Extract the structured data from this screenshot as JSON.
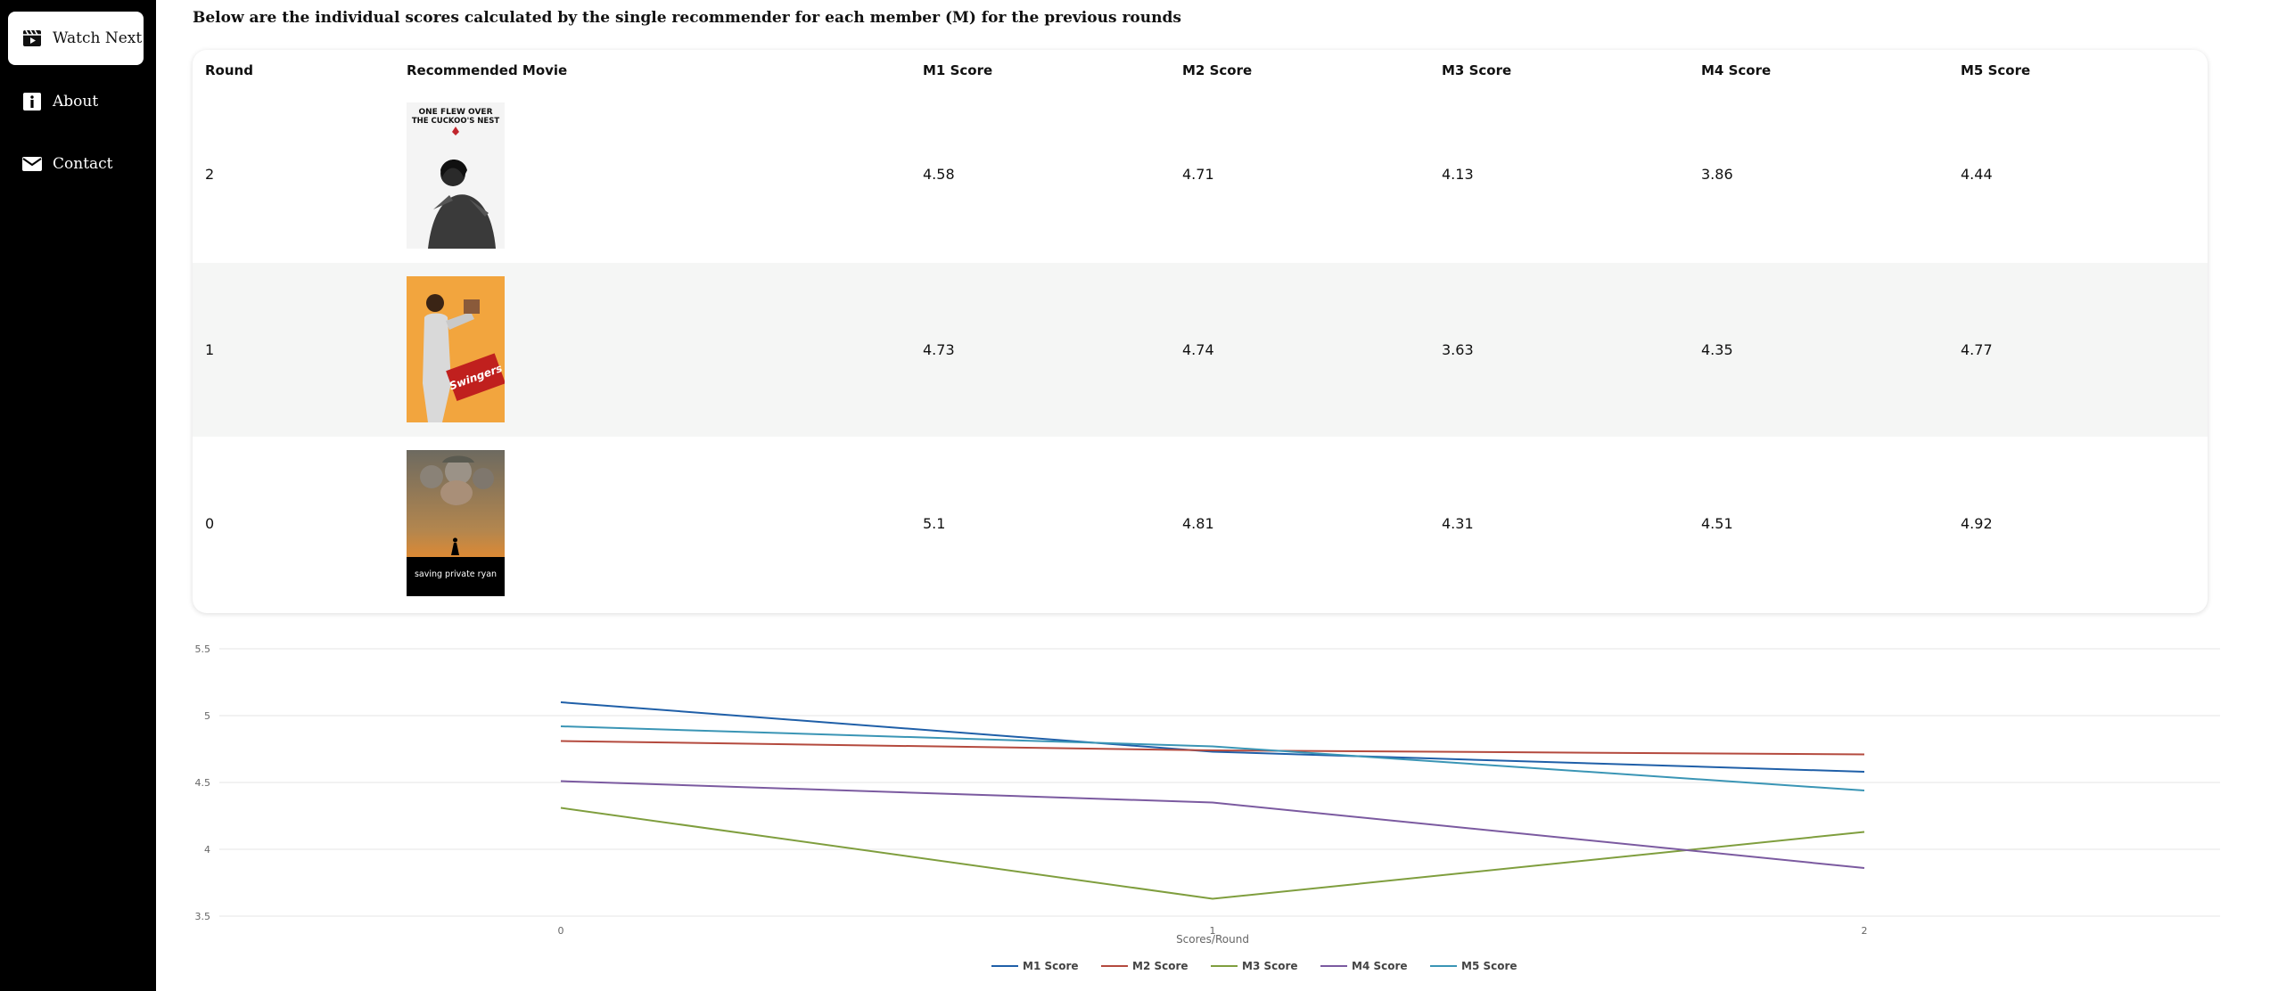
{
  "sidebar": {
    "items": [
      {
        "label": "Watch Next",
        "icon": "clapperboard-icon",
        "active": true
      },
      {
        "label": "About",
        "icon": "info-icon",
        "active": false
      },
      {
        "label": "Contact",
        "icon": "mail-icon",
        "active": false
      }
    ]
  },
  "intro": "Below are the individual scores calculated by the single recommender for each member (M) for the previous rounds",
  "table": {
    "headers": [
      "Round",
      "Recommended Movie",
      "M1 Score",
      "M2 Score",
      "M3 Score",
      "M4 Score",
      "M5 Score"
    ],
    "rows": [
      {
        "round": "2",
        "poster": {
          "title_lines": [
            "ONE FLEW OVER",
            "THE CUCKOO'S NEST"
          ]
        },
        "scores": [
          "4.58",
          "4.71",
          "4.13",
          "3.86",
          "4.44"
        ]
      },
      {
        "round": "1",
        "poster": {
          "title": "Swingers"
        },
        "scores": [
          "4.73",
          "4.74",
          "3.63",
          "4.35",
          "4.77"
        ]
      },
      {
        "round": "0",
        "poster": {
          "title": "saving private ryan"
        },
        "scores": [
          "5.1",
          "4.81",
          "4.31",
          "4.51",
          "4.92"
        ]
      }
    ]
  },
  "chart_data": {
    "type": "line",
    "x": [
      0,
      1,
      2
    ],
    "x_tick_labels": [
      "0",
      "1",
      "2"
    ],
    "xlabel": "Scores/Round",
    "ylabel": "",
    "ylim": [
      3.5,
      5.5
    ],
    "y_ticks": [
      3.5,
      4,
      4.5,
      5,
      5.5
    ],
    "y_tick_labels": [
      "3.5",
      "4",
      "4.5",
      "5",
      "5.5"
    ],
    "grid": true,
    "legend_position": "bottom-center",
    "series": [
      {
        "name": "M1 Score",
        "color": "#1f5fa8",
        "values": [
          5.1,
          4.73,
          4.58
        ]
      },
      {
        "name": "M2 Score",
        "color": "#b44a3e",
        "values": [
          4.81,
          4.74,
          4.71
        ]
      },
      {
        "name": "M3 Score",
        "color": "#7f9e3e",
        "values": [
          4.31,
          3.63,
          4.13
        ]
      },
      {
        "name": "M4 Score",
        "color": "#7b5aa0",
        "values": [
          4.51,
          4.35,
          3.86
        ]
      },
      {
        "name": "M5 Score",
        "color": "#3a95b5",
        "values": [
          4.92,
          4.77,
          4.44
        ]
      }
    ]
  }
}
